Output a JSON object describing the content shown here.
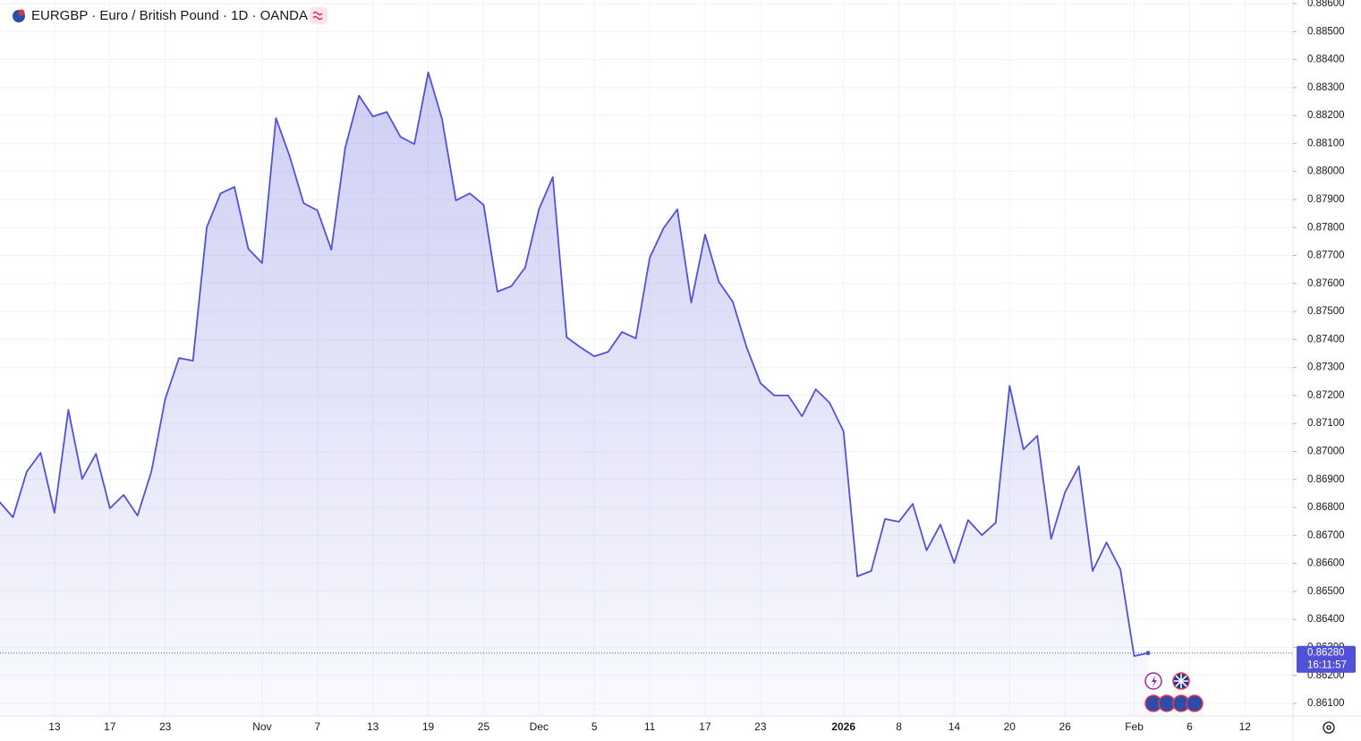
{
  "chart_data": {
    "type": "area",
    "title": "EURGBP · Euro / British Pound · 1D · OANDA",
    "color": "#5151d8",
    "grid": true,
    "categories": [
      null,
      null,
      null,
      null,
      "13",
      null,
      null,
      null,
      "17",
      null,
      null,
      null,
      "23",
      null,
      null,
      null,
      null,
      null,
      null,
      "Nov",
      null,
      null,
      null,
      "7",
      null,
      null,
      null,
      "13",
      null,
      null,
      null,
      "19",
      null,
      null,
      null,
      "25",
      null,
      null,
      null,
      "Dec",
      null,
      null,
      null,
      "5",
      null,
      null,
      null,
      "11",
      null,
      null,
      null,
      "17",
      null,
      null,
      null,
      "23",
      null,
      null,
      null,
      null,
      null,
      "2026",
      null,
      null,
      null,
      "8",
      null,
      null,
      null,
      "14",
      null,
      null,
      null,
      "20",
      null,
      null,
      null,
      "26",
      null,
      null,
      null,
      null,
      "Feb",
      null,
      null,
      null,
      "6",
      null,
      null,
      null,
      "12"
    ],
    "values": [
      0.86822,
      0.86765,
      0.86928,
      0.86995,
      0.86781,
      0.87149,
      0.86902,
      0.86992,
      0.86797,
      0.86845,
      0.86771,
      0.86928,
      0.87187,
      0.87334,
      0.87324,
      0.87801,
      0.87922,
      0.87945,
      0.87724,
      0.87673,
      0.88191,
      0.88053,
      0.87887,
      0.87861,
      0.87721,
      0.88085,
      0.88271,
      0.88197,
      0.88213,
      0.88124,
      0.88098,
      0.88354,
      0.88188,
      0.87897,
      0.87922,
      0.87881,
      0.87571,
      0.8759,
      0.87657,
      0.87865,
      0.8798,
      0.87408,
      0.87372,
      0.8734,
      0.87356,
      0.87427,
      0.87404,
      0.87692,
      0.87798,
      0.87865,
      0.87532,
      0.87775,
      0.87606,
      0.87535,
      0.87372,
      0.87244,
      0.872,
      0.872,
      0.87126,
      0.87222,
      0.87174,
      0.87072,
      0.86554,
      0.86573,
      0.86759,
      0.86749,
      0.86813,
      0.86647,
      0.86739,
      0.86602,
      0.86755,
      0.86701,
      0.86746,
      0.87235,
      0.87008,
      0.87056,
      0.86688,
      0.86854,
      0.86947,
      0.86573,
      0.86675,
      0.86579,
      0.86269,
      0.8628,
      null,
      null,
      null,
      null,
      null,
      null,
      null
    ],
    "value_labels": [
      null,
      null,
      null,
      null,
      null,
      null,
      null,
      null,
      null,
      null,
      null,
      null,
      null,
      null,
      null,
      null,
      null,
      null,
      null,
      null,
      null,
      null,
      null,
      null,
      null,
      null,
      null,
      null,
      null,
      null,
      null,
      null,
      null,
      null,
      null,
      null,
      null,
      null,
      null,
      null,
      null,
      null,
      null,
      null,
      null,
      null,
      null,
      null,
      null,
      null,
      null,
      null,
      null,
      null,
      null,
      null,
      null,
      null,
      null,
      null,
      null,
      null,
      null,
      null,
      null,
      null,
      null,
      null,
      null,
      null,
      null,
      null,
      null,
      null,
      null,
      null,
      null,
      null,
      null,
      null,
      null,
      null,
      null,
      "0.86280",
      null,
      null,
      null,
      null,
      null,
      null,
      null
    ],
    "countdown": "16:11:57",
    "ylim": [
      0.861,
      0.886
    ],
    "yticks": [
      {
        "value": 0.861,
        "label": "0.86100"
      },
      {
        "value": 0.862,
        "label": "0.86200"
      },
      {
        "value": 0.863,
        "label": "0.86300"
      },
      {
        "value": 0.864,
        "label": "0.86400"
      },
      {
        "value": 0.865,
        "label": "0.86500"
      },
      {
        "value": 0.866,
        "label": "0.86600"
      },
      {
        "value": 0.867,
        "label": "0.86700"
      },
      {
        "value": 0.868,
        "label": "0.86800"
      },
      {
        "value": 0.869,
        "label": "0.86900"
      },
      {
        "value": 0.87,
        "label": "0.87000"
      },
      {
        "value": 0.871,
        "label": "0.87100"
      },
      {
        "value": 0.872,
        "label": "0.87200"
      },
      {
        "value": 0.873,
        "label": "0.87300"
      },
      {
        "value": 0.874,
        "label": "0.87400"
      },
      {
        "value": 0.875,
        "label": "0.87500"
      },
      {
        "value": 0.876,
        "label": "0.87600"
      },
      {
        "value": 0.877,
        "label": "0.87700"
      },
      {
        "value": 0.878,
        "label": "0.87800"
      },
      {
        "value": 0.879,
        "label": "0.87900"
      },
      {
        "value": 0.88,
        "label": "0.88000"
      },
      {
        "value": 0.881,
        "label": "0.88100"
      },
      {
        "value": 0.882,
        "label": "0.88200"
      },
      {
        "value": 0.883,
        "label": "0.88300"
      },
      {
        "value": 0.884,
        "label": "0.88400"
      },
      {
        "value": 0.885,
        "label": "0.88500"
      },
      {
        "value": 0.886,
        "label": "0.88600"
      }
    ]
  }
}
